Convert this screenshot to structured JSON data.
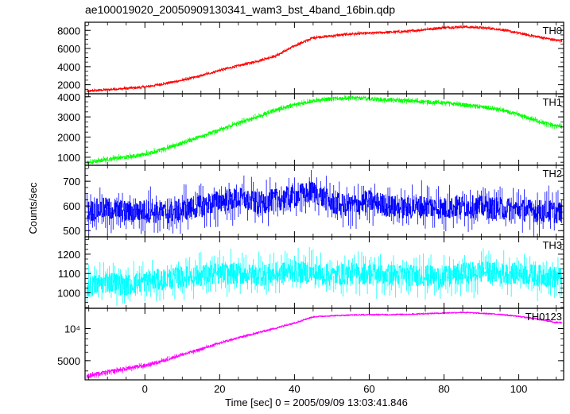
{
  "title": "ae100019020_20050909130341_wam3_bst_4band_16bin.qdp",
  "xlabel": "Time [sec] 0 = 2005/09/09 13:03:41.846",
  "ylabel": "Counts/sec",
  "chart_data": [
    {
      "type": "line",
      "name": "TH0",
      "color": "#ff0000",
      "xlim": [
        -16,
        112
      ],
      "ylim": [
        1000,
        8900
      ],
      "yticks": [
        2000,
        4000,
        6000,
        8000
      ],
      "ytick_labels": [
        "2000",
        "4000",
        "6000",
        "8000"
      ],
      "x": [
        -15,
        -10,
        -5,
        0,
        5,
        10,
        15,
        20,
        25,
        30,
        35,
        40,
        45,
        50,
        55,
        60,
        65,
        70,
        75,
        80,
        85,
        90,
        95,
        100,
        105,
        110
      ],
      "y": [
        1300,
        1450,
        1600,
        1750,
        2100,
        2500,
        3000,
        3600,
        4100,
        4600,
        5200,
        6300,
        7200,
        7400,
        7600,
        7700,
        7800,
        7900,
        8100,
        8300,
        8400,
        8300,
        8100,
        7700,
        7300,
        6900
      ],
      "noise": 110
    },
    {
      "type": "line",
      "name": "TH1",
      "color": "#00ff00",
      "xlim": [
        -16,
        112
      ],
      "ylim": [
        600,
        4150
      ],
      "yticks": [
        1000,
        2000,
        3000,
        4000
      ],
      "ytick_labels": [
        "1000",
        "2000",
        "3000",
        "4000"
      ],
      "x": [
        -15,
        -10,
        -5,
        0,
        5,
        10,
        15,
        20,
        25,
        30,
        35,
        40,
        45,
        50,
        55,
        60,
        65,
        70,
        75,
        80,
        85,
        90,
        95,
        100,
        105,
        110
      ],
      "y": [
        750,
        900,
        1000,
        1150,
        1400,
        1700,
        2050,
        2350,
        2700,
        3000,
        3350,
        3600,
        3800,
        3900,
        3950,
        3900,
        3850,
        3800,
        3750,
        3700,
        3600,
        3500,
        3350,
        3100,
        2800,
        2550
      ],
      "noise": 80
    },
    {
      "type": "line",
      "name": "TH2",
      "color": "#0000ff",
      "xlim": [
        -16,
        112
      ],
      "ylim": [
        475,
        765
      ],
      "yticks": [
        500,
        600,
        700
      ],
      "ytick_labels": [
        "500",
        "600",
        "700"
      ],
      "x": [
        -15,
        -10,
        -5,
        0,
        5,
        10,
        15,
        20,
        25,
        30,
        35,
        40,
        45,
        50,
        55,
        60,
        65,
        70,
        75,
        80,
        85,
        90,
        95,
        100,
        105,
        110
      ],
      "y": [
        580,
        590,
        575,
        580,
        570,
        585,
        600,
        620,
        630,
        610,
        625,
        640,
        660,
        610,
        600,
        620,
        600,
        590,
        600,
        590,
        600,
        595,
        590,
        585,
        580,
        575
      ],
      "noise": 45
    },
    {
      "type": "line",
      "name": "TH3",
      "color": "#00ffff",
      "xlim": [
        -16,
        112
      ],
      "ylim": [
        920,
        1290
      ],
      "yticks": [
        1000,
        1100,
        1200
      ],
      "ytick_labels": [
        "1000",
        "1100",
        "1200"
      ],
      "x": [
        -15,
        -10,
        -5,
        0,
        5,
        10,
        15,
        20,
        25,
        30,
        35,
        40,
        45,
        50,
        55,
        60,
        65,
        70,
        75,
        80,
        85,
        90,
        95,
        100,
        105,
        110
      ],
      "y": [
        1030,
        1060,
        1040,
        1060,
        1070,
        1080,
        1090,
        1100,
        1100,
        1090,
        1100,
        1110,
        1100,
        1090,
        1100,
        1100,
        1095,
        1090,
        1090,
        1080,
        1100,
        1110,
        1100,
        1100,
        1090,
        1080
      ],
      "noise": 55
    },
    {
      "type": "line",
      "name": "TH0123",
      "color": "#ff00ff",
      "xlim": [
        -16,
        112
      ],
      "ylim": [
        3300,
        15500
      ],
      "ylog": true,
      "yticks": [
        5000,
        10000
      ],
      "ytick_labels": [
        "5000",
        "10⁴"
      ],
      "x": [
        -15,
        -10,
        -5,
        0,
        5,
        10,
        15,
        20,
        25,
        30,
        35,
        40,
        45,
        50,
        55,
        60,
        65,
        70,
        75,
        80,
        85,
        90,
        95,
        100,
        105,
        110
      ],
      "y": [
        3600,
        3900,
        4200,
        4500,
        5000,
        5700,
        6400,
        7300,
        8200,
        9100,
        10100,
        11300,
        12900,
        13200,
        13400,
        13500,
        13500,
        13600,
        13800,
        14000,
        14200,
        13900,
        13600,
        13000,
        12300,
        11400
      ],
      "noise": 160
    }
  ],
  "shared_x": {
    "xticks": [
      0,
      20,
      40,
      60,
      80,
      100
    ],
    "xtick_labels": [
      "0",
      "20",
      "40",
      "60",
      "80",
      "100"
    ]
  }
}
